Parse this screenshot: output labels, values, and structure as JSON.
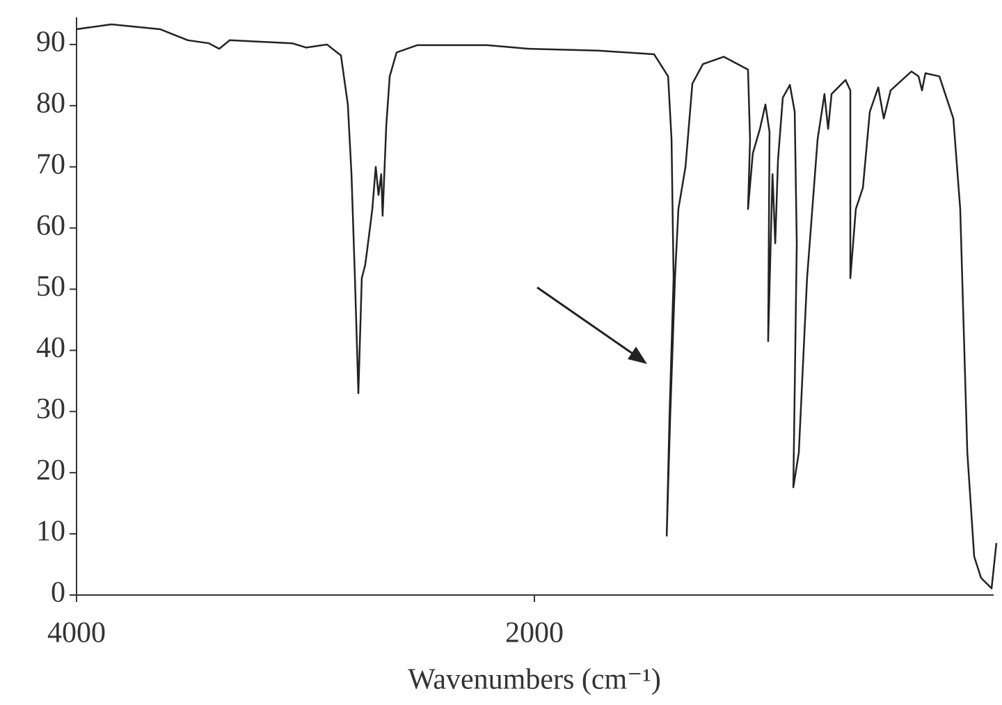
{
  "chart_data": {
    "type": "line",
    "x_label": "Wavenumbers (cm⁻¹)",
    "xlim": [
      4000,
      -20
    ],
    "xticks": [
      4000,
      2000
    ],
    "ylim": [
      0,
      94.5
    ],
    "yticks": [
      0,
      10,
      20,
      30,
      40,
      50,
      60,
      70,
      80,
      90
    ],
    "grid": false,
    "series": [
      {
        "color": "#222222",
        "x": [
          4000,
          3848,
          3635,
          3514,
          3422,
          3377,
          3331,
          3058,
          2997,
          2906,
          2845,
          2815,
          2799,
          2784,
          2769,
          2754,
          2739,
          2723,
          2708,
          2693,
          2681,
          2669,
          2663,
          2647,
          2632,
          2602,
          2511,
          2207,
          2024,
          1720,
          1477,
          1416,
          1401,
          1392,
          1410,
          1422,
          1407,
          1386,
          1371,
          1340,
          1310,
          1264,
          1173,
          1067,
          1058,
          1067,
          1046,
          1015,
          991,
          973,
          979,
          960,
          948,
          936,
          915,
          884,
          863,
          854,
          869,
          845,
          809,
          763,
          733,
          717,
          702,
          641,
          620,
          620,
          596,
          565,
          535,
          498,
          474,
          444,
          353,
          322,
          307,
          292,
          231,
          170,
          140,
          125,
          109,
          79,
          49,
          3,
          -18
        ],
        "values": [
          92.5,
          93.3,
          92.5,
          90.7,
          90.2,
          89.3,
          90.7,
          90.2,
          89.5,
          90,
          88.2,
          80.2,
          68.8,
          51.8,
          33,
          51.8,
          54,
          58.6,
          63.1,
          70,
          65.4,
          68.8,
          62,
          76.8,
          84.8,
          88.7,
          89.9,
          89.9,
          89.3,
          89,
          88.4,
          84.8,
          74.5,
          51.8,
          29,
          9.7,
          29,
          51.8,
          63.1,
          70,
          83.6,
          86.8,
          88,
          85.9,
          74.5,
          63.1,
          72.2,
          76.2,
          80.2,
          75.7,
          41.5,
          68.8,
          57.5,
          71.1,
          81.3,
          83.4,
          79,
          57.5,
          17.6,
          23.3,
          51.8,
          74.5,
          81.9,
          76.2,
          81.9,
          84.2,
          82.5,
          51.8,
          63.1,
          66.6,
          79,
          83,
          77.9,
          82.5,
          85.6,
          84.8,
          82.5,
          85.3,
          84.8,
          77.9,
          63.1,
          43.8,
          23.3,
          6.3,
          2.8,
          1.1,
          8.5
        ]
      }
    ]
  }
}
